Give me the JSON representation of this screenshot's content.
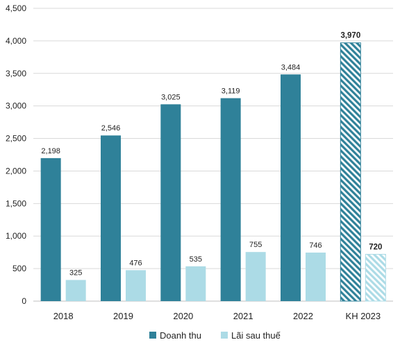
{
  "colors": {
    "revenue": "#2f8199",
    "profit": "#acdbe6",
    "grid": "#d9d9d9",
    "axis": "#bfbfbf",
    "text": "#222222"
  },
  "chart_data": {
    "type": "bar",
    "title": "",
    "xlabel": "",
    "ylabel": "",
    "categories": [
      "2018",
      "2019",
      "2020",
      "2021",
      "2022",
      "KH 2023"
    ],
    "series": [
      {
        "name": "Doanh thu",
        "values": [
          2198,
          2546,
          3025,
          3119,
          3484,
          3970
        ],
        "labels": [
          "2,198",
          "2,546",
          "3,025",
          "3,119",
          "3,484",
          "3,970"
        ]
      },
      {
        "name": "Lãi sau thuế",
        "values": [
          325,
          476,
          535,
          755,
          746,
          720
        ],
        "labels": [
          "325",
          "476",
          "535",
          "755",
          "746",
          "720"
        ]
      }
    ],
    "highlighted_category": "KH 2023",
    "highlight_style": "hatched",
    "ylim": [
      0,
      4500
    ],
    "yticks": [
      0,
      500,
      1000,
      1500,
      2000,
      2500,
      3000,
      3500,
      4000,
      4500
    ],
    "ytick_labels": [
      "0",
      "500",
      "1,000",
      "1,500",
      "2,000",
      "2,500",
      "3,000",
      "3,500",
      "4,000",
      "4,500"
    ],
    "grid": true,
    "legend_position": "bottom-center"
  }
}
